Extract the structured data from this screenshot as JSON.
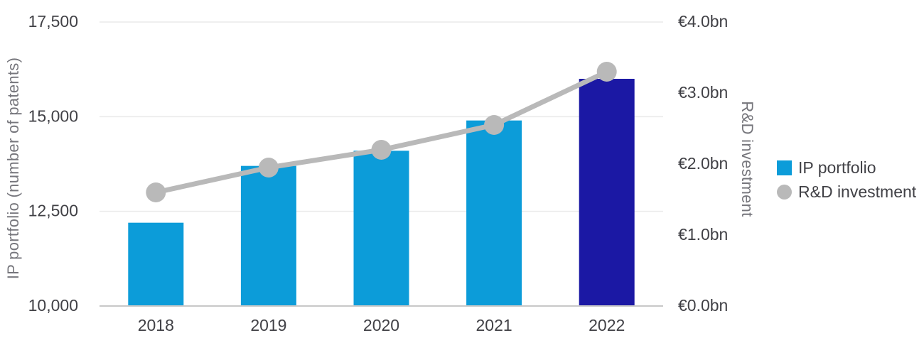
{
  "chart_data": {
    "type": "combo_bar_line",
    "categories": [
      "2018",
      "2019",
      "2020",
      "2021",
      "2022"
    ],
    "series": [
      {
        "name": "IP portfolio",
        "type": "bar",
        "axis": "left",
        "values": [
          12200,
          13700,
          14100,
          14900,
          16000
        ],
        "bar_colors": [
          "#0C9CD9",
          "#0C9CD9",
          "#0C9CD9",
          "#0C9CD9",
          "#1B18A4"
        ]
      },
      {
        "name": "R&D investment",
        "type": "line",
        "axis": "right",
        "values": [
          1.6,
          1.95,
          2.2,
          2.55,
          3.3
        ],
        "color": "#B9B9B9"
      }
    ],
    "left_axis": {
      "title": "IP portfolio (number of patents)",
      "min": 10000,
      "max": 17500,
      "ticks": [
        {
          "label": "17,500",
          "value": 17500,
          "grid": true
        },
        {
          "label": "15,000",
          "value": 15000,
          "grid": true
        },
        {
          "label": "12,500",
          "value": 12500,
          "grid": true
        },
        {
          "label": "10,000",
          "value": 10000,
          "grid": false
        }
      ]
    },
    "right_axis": {
      "title": "R&D investment",
      "min": 0,
      "max": 4,
      "ticks": [
        {
          "label": "€4.0bn",
          "value": 4.0
        },
        {
          "label": "€3.0bn",
          "value": 3.0
        },
        {
          "label": "€2.0bn",
          "value": 2.0
        },
        {
          "label": "€1.0bn",
          "value": 1.0
        },
        {
          "label": "€0.0bn",
          "value": 0.0
        }
      ]
    },
    "grid": true,
    "legend_position": "right",
    "title": ""
  },
  "legend": {
    "items": [
      {
        "label": "IP portfolio",
        "swatch": "square",
        "color": "#0C9CD9"
      },
      {
        "label": "R&D investment",
        "swatch": "circle",
        "color": "#B9B9B9"
      }
    ]
  },
  "colors": {
    "bar_blue": "#0C9CD9",
    "bar_highlight_navy": "#1B18A4",
    "line_gray": "#B9B9B9",
    "gridline": "#EAEAEA",
    "axis_line": "#C8C8C8",
    "tick_text": "#414146",
    "axis_title_text": "#76767C",
    "background": "#FFFFFF"
  }
}
